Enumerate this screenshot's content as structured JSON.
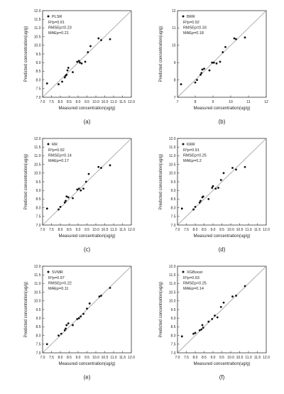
{
  "chart_data": [
    {
      "type": "scatter",
      "panel_label": "(a)",
      "xlabel": "Measured concentration(ug/g)",
      "ylabel": "Predicted concentration(ug/g)",
      "xlim": [
        7.0,
        12.0
      ],
      "ylim": [
        7.0,
        12.0
      ],
      "xticks": [
        "7.0",
        "7.5",
        "8.0",
        "8.5",
        "9.0",
        "9.5",
        "10.0",
        "10.5",
        "11.0",
        "11.5",
        "12.0"
      ],
      "yticks": [
        "7.0",
        "7.5",
        "8.0",
        "8.5",
        "9.0",
        "9.5",
        "10.0",
        "10.5",
        "11.0",
        "11.5",
        "12.0"
      ],
      "legend": {
        "name": "PLSR",
        "r2": "R²p=0.91",
        "rmse": "RMSEp=0.23",
        "mae": "MAEp=0.21"
      },
      "points": [
        [
          7.25,
          7.8
        ],
        [
          7.9,
          7.75
        ],
        [
          8.1,
          7.9
        ],
        [
          8.25,
          8.15
        ],
        [
          8.3,
          8.25
        ],
        [
          8.35,
          8.3
        ],
        [
          8.4,
          8.55
        ],
        [
          8.45,
          8.7
        ],
        [
          8.7,
          8.45
        ],
        [
          8.95,
          9.05
        ],
        [
          9.05,
          9.1
        ],
        [
          9.1,
          9.0
        ],
        [
          9.2,
          8.95
        ],
        [
          9.4,
          9.05
        ],
        [
          9.55,
          9.6
        ],
        [
          9.7,
          9.95
        ],
        [
          10.15,
          10.4
        ],
        [
          10.3,
          10.3
        ],
        [
          10.8,
          10.35
        ]
      ]
    },
    {
      "type": "scatter",
      "panel_label": "(b)",
      "xlabel": "Measured concentration(ug/g)",
      "ylabel": "Predicted concentration(ug/g)",
      "xlim": [
        7,
        12
      ],
      "ylim": [
        7,
        12
      ],
      "xticks": [
        "7",
        "8",
        "9",
        "10",
        "11",
        "12"
      ],
      "yticks": [
        "7",
        "8",
        "9",
        "10",
        "11",
        "12"
      ],
      "legend": {
        "name": "BRR",
        "r2": "R²p=0.92",
        "rmse": "RMSEp=0.33",
        "mae": "MAEp=0.18"
      },
      "points": [
        [
          7.2,
          7.75
        ],
        [
          8.0,
          7.85
        ],
        [
          8.1,
          8.0
        ],
        [
          8.3,
          8.3
        ],
        [
          8.35,
          8.4
        ],
        [
          8.4,
          8.6
        ],
        [
          8.5,
          8.65
        ],
        [
          8.8,
          8.55
        ],
        [
          8.95,
          9.0
        ],
        [
          9.05,
          9.0
        ],
        [
          9.2,
          8.95
        ],
        [
          9.4,
          9.05
        ],
        [
          9.55,
          9.6
        ],
        [
          9.7,
          9.9
        ],
        [
          10.2,
          10.4
        ],
        [
          10.3,
          10.35
        ],
        [
          10.8,
          10.45
        ]
      ]
    },
    {
      "type": "scatter",
      "panel_label": "(c)",
      "xlabel": "Measured concentration(ug/g)",
      "ylabel": "Predicted concentration(ug/g)",
      "xlim": [
        7.0,
        12.0
      ],
      "ylim": [
        7.0,
        12.0
      ],
      "xticks": [
        "7.0",
        "7.5",
        "8.0",
        "8.5",
        "9.0",
        "9.5",
        "10.0",
        "10.5",
        "11.0",
        "11.5",
        "12.0"
      ],
      "yticks": [
        "7.0",
        "7.5",
        "8.0",
        "8.5",
        "9.0",
        "9.5",
        "10.0",
        "10.5",
        "11.0",
        "11.5",
        "12.0"
      ],
      "legend": {
        "name": "RR",
        "r2": "R²p=0.92",
        "rmse": "RMSEp=0.14",
        "mae": "MAEp=0.17"
      },
      "points": [
        [
          7.25,
          7.95
        ],
        [
          7.9,
          7.9
        ],
        [
          8.0,
          8.05
        ],
        [
          8.25,
          8.3
        ],
        [
          8.3,
          8.4
        ],
        [
          8.35,
          8.65
        ],
        [
          8.45,
          8.6
        ],
        [
          8.7,
          8.55
        ],
        [
          8.95,
          9.05
        ],
        [
          9.05,
          9.1
        ],
        [
          9.15,
          9.0
        ],
        [
          9.3,
          9.1
        ],
        [
          9.45,
          9.5
        ],
        [
          9.6,
          9.95
        ],
        [
          10.15,
          10.35
        ],
        [
          10.3,
          10.3
        ],
        [
          10.8,
          10.45
        ]
      ]
    },
    {
      "type": "scatter",
      "panel_label": "(d)",
      "xlabel": "Measured concentration(ug/g)",
      "ylabel": "Predicted concentration(ug/g)",
      "xlim": [
        7.0,
        12.0
      ],
      "ylim": [
        7.0,
        12.0
      ],
      "xticks": [
        "7.0",
        "7.5",
        "8.0",
        "8.5",
        "9.0",
        "9.5",
        "10.0",
        "10.5",
        "11.0",
        "11.5",
        "12.0"
      ],
      "yticks": [
        "7.0",
        "7.5",
        "8.0",
        "8.5",
        "9.0",
        "9.5",
        "10.0",
        "10.5",
        "11.0",
        "11.5",
        "12.0"
      ],
      "legend": {
        "name": "KRR",
        "r2": "R²p=0.91",
        "rmse": "RMSEp=0.25",
        "mae": "MAEp=0.2"
      },
      "points": [
        [
          7.25,
          7.95
        ],
        [
          7.9,
          7.9
        ],
        [
          8.0,
          8.05
        ],
        [
          8.25,
          8.3
        ],
        [
          8.3,
          8.4
        ],
        [
          8.4,
          8.6
        ],
        [
          8.45,
          8.65
        ],
        [
          8.75,
          8.5
        ],
        [
          8.95,
          9.15
        ],
        [
          9.0,
          9.25
        ],
        [
          9.15,
          9.1
        ],
        [
          9.3,
          9.15
        ],
        [
          9.45,
          9.6
        ],
        [
          9.6,
          10.0
        ],
        [
          10.1,
          10.3
        ],
        [
          10.3,
          10.2
        ],
        [
          10.8,
          10.35
        ]
      ]
    },
    {
      "type": "scatter",
      "panel_label": "(e)",
      "xlabel": "Measured concentration(ug/g)",
      "ylabel": "Predicted concentration(ug/g)",
      "xlim": [
        7.0,
        12.0
      ],
      "ylim": [
        7.0,
        12.0
      ],
      "xticks": [
        "7.0",
        "7.5",
        "8.0",
        "8.5",
        "9.0",
        "9.5",
        "10.0",
        "10.5",
        "11.0",
        "11.5",
        "12.0"
      ],
      "yticks": [
        "7.0",
        "7.5",
        "8.0",
        "8.5",
        "9.0",
        "9.5",
        "10.0",
        "10.5",
        "11.0",
        "11.5",
        "12.0"
      ],
      "legend": {
        "name": "SVMR",
        "r2": "R²p=0.97",
        "rmse": "RMSEp=0.22",
        "mae": "MAEp=0.11"
      },
      "points": [
        [
          7.25,
          7.5
        ],
        [
          7.9,
          8.0
        ],
        [
          8.05,
          8.1
        ],
        [
          8.25,
          8.3
        ],
        [
          8.3,
          8.4
        ],
        [
          8.35,
          8.6
        ],
        [
          8.45,
          8.7
        ],
        [
          8.7,
          8.6
        ],
        [
          8.95,
          8.95
        ],
        [
          9.05,
          9.0
        ],
        [
          9.15,
          9.1
        ],
        [
          9.3,
          9.25
        ],
        [
          9.5,
          9.55
        ],
        [
          9.65,
          9.85
        ],
        [
          10.2,
          10.25
        ],
        [
          10.3,
          10.3
        ],
        [
          10.8,
          10.75
        ]
      ]
    },
    {
      "type": "scatter",
      "panel_label": "(f)",
      "xlabel": "Measured concentration(ug/g)",
      "ylabel": "Predicted concentration(ug/g)",
      "xlim": [
        7.0,
        12.0
      ],
      "ylim": [
        7.0,
        12.0
      ],
      "xticks": [
        "7.0",
        "7.5",
        "8.0",
        "8.5",
        "9.0",
        "9.5",
        "10.0",
        "10.5",
        "11.0",
        "11.5",
        "12.0"
      ],
      "yticks": [
        "7.0",
        "7.5",
        "8.0",
        "8.5",
        "9.0",
        "9.5",
        "10.0",
        "10.5",
        "11.0",
        "11.5",
        "12.0"
      ],
      "legend": {
        "name": "XGBoost",
        "r2": "R²p=0.93",
        "rmse": "RMSEp=0.25",
        "mae": "MAEp=0.14"
      },
      "points": [
        [
          7.25,
          7.95
        ],
        [
          7.9,
          8.1
        ],
        [
          8.0,
          8.15
        ],
        [
          8.25,
          8.3
        ],
        [
          8.35,
          8.35
        ],
        [
          8.4,
          8.6
        ],
        [
          8.45,
          8.45
        ],
        [
          8.75,
          8.8
        ],
        [
          8.95,
          8.95
        ],
        [
          9.1,
          9.15
        ],
        [
          9.25,
          9.05
        ],
        [
          9.45,
          9.65
        ],
        [
          9.6,
          9.9
        ],
        [
          10.1,
          10.25
        ],
        [
          10.3,
          10.3
        ],
        [
          10.8,
          10.85
        ]
      ]
    }
  ]
}
